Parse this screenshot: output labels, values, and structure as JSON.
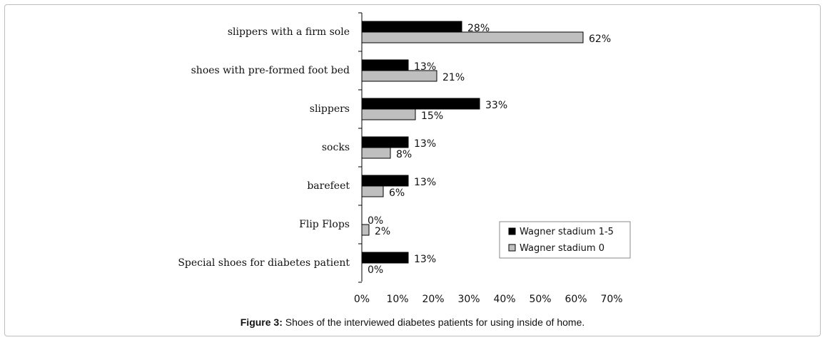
{
  "chart_data": {
    "type": "bar",
    "orientation": "horizontal",
    "categories": [
      "slippers with a firm sole",
      "shoes with pre-formed foot bed",
      "slippers",
      "socks",
      "barefeet",
      "Flip Flops",
      "Special shoes for diabetes patient"
    ],
    "series": [
      {
        "name": "Wagner stadium 1-5",
        "values": [
          28,
          13,
          33,
          13,
          13,
          0,
          13
        ],
        "color": "#000000"
      },
      {
        "name": "Wagner stadium 0",
        "values": [
          62,
          21,
          15,
          8,
          6,
          2,
          0
        ],
        "color": "#bfbfbf"
      }
    ],
    "xlim": [
      0,
      70
    ],
    "xticks": [
      "0%",
      "10%",
      "20%",
      "30%",
      "40%",
      "50%",
      "60%",
      "70%"
    ],
    "value_suffix": "%",
    "grid": false,
    "legend_position": "bottom-right"
  },
  "caption": {
    "label": "Figure 3:",
    "text": " Shoes of the interviewed diabetes patients for using inside of home."
  }
}
